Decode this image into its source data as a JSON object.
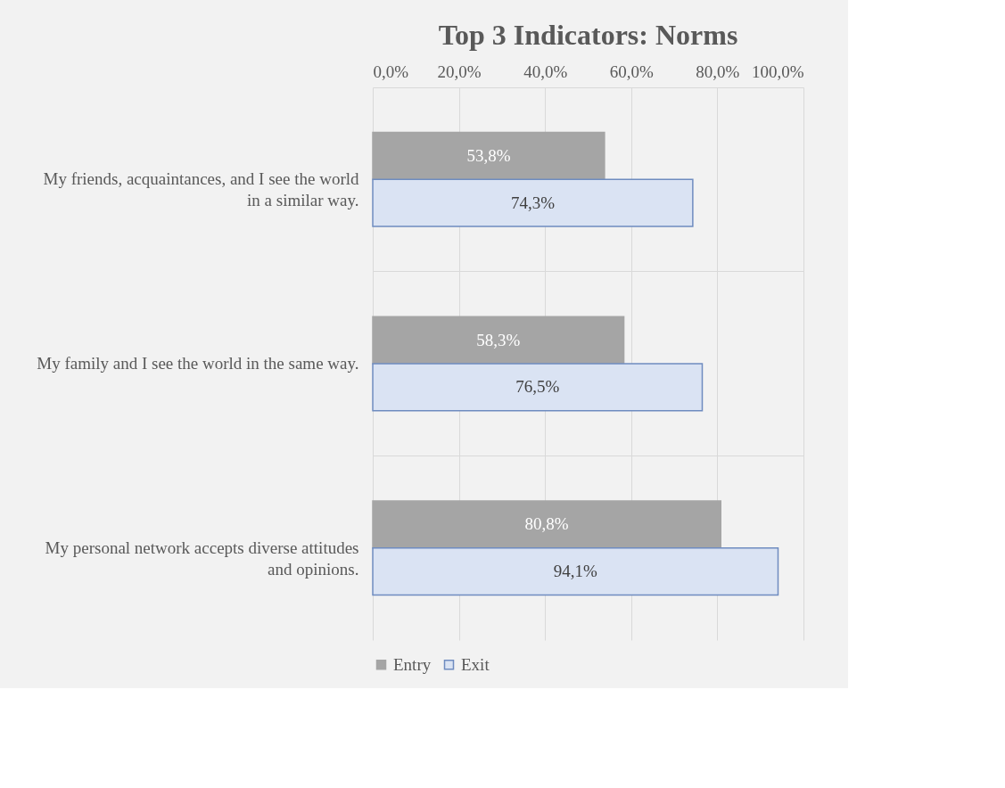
{
  "chart_data": {
    "type": "bar",
    "orientation": "horizontal",
    "title": "Top 3 Indicators: Norms",
    "categories": [
      "My friends, acquaintances, and I see the world in a similar way.",
      "My family and I see the world in the same way.",
      "My personal network accepts diverse attitudes and opinions."
    ],
    "series": [
      {
        "name": "Entry",
        "color": "#a5a5a5",
        "values": [
          53.8,
          58.3,
          80.8
        ],
        "value_labels": [
          "53,8%",
          "58,3%",
          "80,8%"
        ]
      },
      {
        "name": "Exit",
        "color": "#dae3f3",
        "values": [
          74.3,
          76.5,
          94.1
        ],
        "value_labels": [
          "74,3%",
          "76,5%",
          "94,1%"
        ]
      }
    ],
    "xlim": [
      0,
      100
    ],
    "xticks": [
      {
        "value": 0,
        "label": "0,0%"
      },
      {
        "value": 20,
        "label": "20,0%"
      },
      {
        "value": 40,
        "label": "40,0%"
      },
      {
        "value": 60,
        "label": "60,0%"
      },
      {
        "value": 80,
        "label": "80,0%"
      },
      {
        "value": 100,
        "label": "100,0%"
      }
    ],
    "grid": true,
    "legend": "bottom"
  }
}
